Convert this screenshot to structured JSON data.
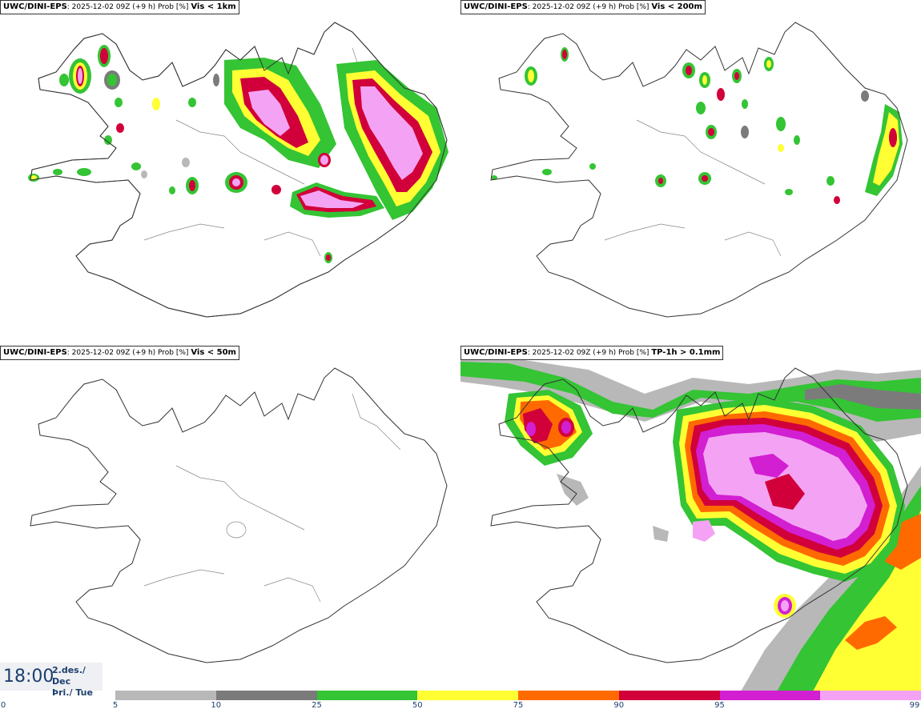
{
  "panels": [
    {
      "source": "UWC/DINI-EPS",
      "meta": ": 2025-12-02 09Z (+9 h) Prob [%]",
      "threshold": "Vis < 1km"
    },
    {
      "source": "UWC/DINI-EPS",
      "meta": ": 2025-12-02 09Z (+9 h) Prob [%]",
      "threshold": "Vis < 200m"
    },
    {
      "source": "UWC/DINI-EPS",
      "meta": ": 2025-12-02 09Z (+9 h) Prob [%]",
      "threshold": "Vis < 50m"
    },
    {
      "source": "UWC/DINI-EPS",
      "meta": ": 2025-12-02 09Z (+9 h) Prob [%]",
      "threshold": "TP-1h > 0.1mm"
    }
  ],
  "time": {
    "clock": "18:00",
    "date_line": "2.des./ Dec",
    "day_line": "Þri./ Tue"
  },
  "legend": {
    "tick_labels": [
      "0",
      "5",
      "10",
      "25",
      "50",
      "75",
      "90",
      "95",
      "99"
    ],
    "colors": [
      "#b8b8b8",
      "#7b7b7b",
      "#34c434",
      "#ffff33",
      "#ff6a00",
      "#d1003a",
      "#d21fd2",
      "#f4a3f4"
    ]
  },
  "colors": {
    "coast": "#555555",
    "title_border": "#333333",
    "time_text": "#1c3f6e"
  }
}
